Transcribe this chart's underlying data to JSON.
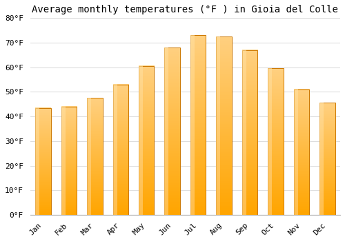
{
  "title": "Average monthly temperatures (°F ) in Gioia del Colle",
  "months": [
    "Jan",
    "Feb",
    "Mar",
    "Apr",
    "May",
    "Jun",
    "Jul",
    "Aug",
    "Sep",
    "Oct",
    "Nov",
    "Dec"
  ],
  "values": [
    43.5,
    44.0,
    47.5,
    53.0,
    60.5,
    68.0,
    73.0,
    72.5,
    67.0,
    59.5,
    51.0,
    45.5
  ],
  "bar_color_main": "#FFA500",
  "bar_color_light": "#FFD080",
  "bar_color_dark": "#E88000",
  "bar_edge_color": "#CC7700",
  "background_color": "#FFFFFF",
  "grid_color": "#DDDDDD",
  "ytick_labels": [
    "0°F",
    "10°F",
    "20°F",
    "30°F",
    "40°F",
    "50°F",
    "60°F",
    "70°F",
    "80°F"
  ],
  "ytick_values": [
    0,
    10,
    20,
    30,
    40,
    50,
    60,
    70,
    80
  ],
  "ylim": [
    0,
    80
  ],
  "title_fontsize": 10,
  "tick_fontsize": 8,
  "font_family": "monospace"
}
